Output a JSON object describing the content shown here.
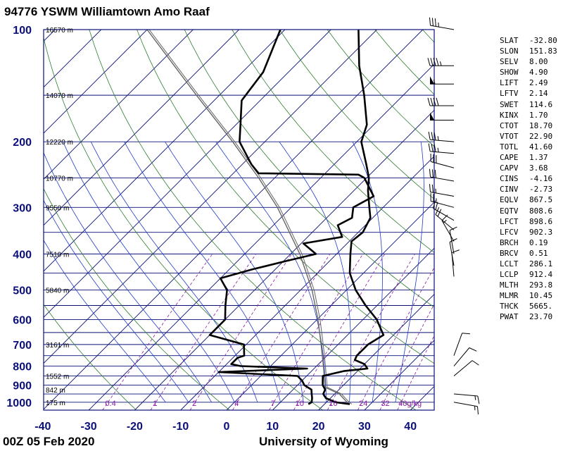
{
  "title": "94776 YSWM Williamtown Amo Raaf",
  "footer": {
    "time": "00Z 05 Feb 2020",
    "source": "University of Wyoming"
  },
  "colors": {
    "frame": "#0a1078",
    "isotherm": "#0a1078",
    "isobar": "#0a1078",
    "dry_adiabat": "#2e7d2e",
    "moist_adiabat": "#1e3cc8",
    "mixing_ratio": "#8c1aa0",
    "profile": "#000000",
    "parcel": "#666666",
    "axis_label": "#0a1078"
  },
  "indices": [
    [
      "SLAT",
      "-32.80"
    ],
    [
      "SLON",
      "151.83"
    ],
    [
      "SELV",
      "8.00"
    ],
    [
      "SHOW",
      "4.90"
    ],
    [
      "LIFT",
      "2.49"
    ],
    [
      "LFTV",
      "2.14"
    ],
    [
      "SWET",
      "114.6"
    ],
    [
      "KINX",
      "1.70"
    ],
    [
      "CTOT",
      "18.70"
    ],
    [
      "VTOT",
      "22.90"
    ],
    [
      "TOTL",
      "41.60"
    ],
    [
      "CAPE",
      "1.37"
    ],
    [
      "CAPV",
      "3.68"
    ],
    [
      "CINS",
      "-4.16"
    ],
    [
      "CINV",
      "-2.73"
    ],
    [
      "EQLV",
      "867.5"
    ],
    [
      "EQTV",
      "808.6"
    ],
    [
      "LFCT",
      "898.6"
    ],
    [
      "LFCV",
      "902.3"
    ],
    [
      "BRCH",
      "0.19"
    ],
    [
      "BRCV",
      "0.51"
    ],
    [
      "LCLT",
      "286.1"
    ],
    [
      "LCLP",
      "912.4"
    ],
    [
      "MLTH",
      "293.8"
    ],
    [
      "MLMR",
      "10.45"
    ],
    [
      "THCK",
      "5665."
    ],
    [
      "PWAT",
      "23.70"
    ]
  ],
  "chart_data": {
    "type": "skew-t",
    "y_scale": "log pressure",
    "pressure_ticks": [
      100,
      200,
      300,
      400,
      500,
      600,
      700,
      800,
      900,
      1000
    ],
    "temperature_ticks": [
      -40,
      -30,
      -20,
      -10,
      0,
      10,
      20,
      30,
      40
    ],
    "xlim": [
      -40,
      45
    ],
    "ylim": [
      1050,
      100
    ],
    "height_labels": [
      {
        "p": 100,
        "text": "16570 m"
      },
      {
        "p": 150,
        "text": "14070 m"
      },
      {
        "p": 200,
        "text": "12220 m"
      },
      {
        "p": 250,
        "text": "10770 m"
      },
      {
        "p": 300,
        "text": "9550 m"
      },
      {
        "p": 400,
        "text": "7510 m"
      },
      {
        "p": 500,
        "text": "5840 m"
      },
      {
        "p": 700,
        "text": "3161 m"
      },
      {
        "p": 850,
        "text": "1552 m"
      },
      {
        "p": 925,
        "text": "842 m"
      },
      {
        "p": 1000,
        "text": "175 m"
      }
    ],
    "mixing_ratio_lines": [
      0.4,
      1,
      2,
      4,
      7,
      10,
      16,
      24,
      32,
      40
    ],
    "mixing_ratio_labels": [
      "0.4",
      "1",
      "2",
      "4",
      "7",
      "10",
      "16",
      "24",
      "32",
      "40g/kg"
    ],
    "dry_adiabats_K": [
      250,
      270,
      290,
      310,
      330,
      350,
      370,
      390,
      410,
      430,
      450,
      470,
      490,
      510
    ],
    "moist_adiabats_C": [
      -15,
      -10,
      -5,
      0,
      5,
      10,
      15,
      20,
      25,
      30,
      35
    ],
    "temperature_profile": [
      [
        1012,
        25.5
      ],
      [
        1000,
        22.0
      ],
      [
        975,
        19.0
      ],
      [
        950,
        17.5
      ],
      [
        925,
        17.0
      ],
      [
        900,
        15.5
      ],
      [
        875,
        14.5
      ],
      [
        850,
        13.5
      ],
      [
        825,
        17.0
      ],
      [
        812,
        21.6
      ],
      [
        790,
        20.0
      ],
      [
        770,
        17.0
      ],
      [
        750,
        16.5
      ],
      [
        700,
        16.5
      ],
      [
        660,
        17.8
      ],
      [
        600,
        13.0
      ],
      [
        550,
        7.5
      ],
      [
        500,
        2.0
      ],
      [
        450,
        -3.0
      ],
      [
        400,
        -7.0
      ],
      [
        370,
        -9.5
      ],
      [
        350,
        -9.0
      ],
      [
        320,
        -10.5
      ],
      [
        300,
        -13.0
      ],
      [
        270,
        -17.0
      ],
      [
        250,
        -19.5
      ],
      [
        230,
        -23.0
      ],
      [
        200,
        -29.0
      ],
      [
        180,
        -31.5
      ],
      [
        150,
        -38.5
      ],
      [
        125,
        -46.0
      ],
      [
        100,
        -54.0
      ]
    ],
    "dewpoint_profile": [
      [
        1012,
        16.5
      ],
      [
        1000,
        16.8
      ],
      [
        975,
        16.0
      ],
      [
        950,
        15.0
      ],
      [
        925,
        14.0
      ],
      [
        900,
        11.5
      ],
      [
        875,
        10.0
      ],
      [
        850,
        8.0
      ],
      [
        830,
        -10.0
      ],
      [
        812,
        8.5
      ],
      [
        800,
        -6.5
      ],
      [
        790,
        -9.0
      ],
      [
        760,
        -9.0
      ],
      [
        750,
        -8.0
      ],
      [
        700,
        -10.5
      ],
      [
        660,
        -20.0
      ],
      [
        600,
        -20.0
      ],
      [
        550,
        -23.0
      ],
      [
        500,
        -26.0
      ],
      [
        465,
        -30.0
      ],
      [
        440,
        -25.0
      ],
      [
        418,
        -19.5
      ],
      [
        400,
        -14.5
      ],
      [
        375,
        -19.5
      ],
      [
        360,
        -12.5
      ],
      [
        335,
        -16.0
      ],
      [
        320,
        -14.5
      ],
      [
        300,
        -16.5
      ],
      [
        280,
        -14.5
      ],
      [
        250,
        -20.5
      ],
      [
        245,
        -22.5
      ],
      [
        243,
        -44.5
      ],
      [
        230,
        -48.0
      ],
      [
        200,
        -55.5
      ],
      [
        180,
        -59.0
      ],
      [
        155,
        -64.0
      ],
      [
        130,
        -65.5
      ],
      [
        100,
        -71.0
      ]
    ],
    "parcel_path": [
      [
        1012,
        25.5
      ],
      [
        1000,
        24.5
      ],
      [
        950,
        21.0
      ],
      [
        912,
        16.5
      ],
      [
        850,
        13.8
      ],
      [
        800,
        11.5
      ],
      [
        700,
        6.3
      ],
      [
        600,
        0.2
      ],
      [
        500,
        -7.5
      ],
      [
        400,
        -18.0
      ],
      [
        300,
        -33.0
      ],
      [
        250,
        -43.5
      ],
      [
        200,
        -57.0
      ],
      [
        150,
        -75.0
      ],
      [
        100,
        -100.0
      ]
    ],
    "wind_barbs": [
      {
        "p": 100,
        "dir": 280,
        "spd": 35
      },
      {
        "p": 125,
        "dir": 270,
        "spd": 45
      },
      {
        "p": 140,
        "dir": 270,
        "spd": 55
      },
      {
        "p": 160,
        "dir": 270,
        "spd": 40
      },
      {
        "p": 175,
        "dir": 270,
        "spd": 50
      },
      {
        "p": 200,
        "dir": 275,
        "spd": 35
      },
      {
        "p": 215,
        "dir": 275,
        "spd": 35
      },
      {
        "p": 235,
        "dir": 285,
        "spd": 30
      },
      {
        "p": 255,
        "dir": 280,
        "spd": 30
      },
      {
        "p": 280,
        "dir": 280,
        "spd": 25
      },
      {
        "p": 300,
        "dir": 285,
        "spd": 25
      },
      {
        "p": 325,
        "dir": 300,
        "spd": 20
      },
      {
        "p": 345,
        "dir": 310,
        "spd": 20
      },
      {
        "p": 370,
        "dir": 330,
        "spd": 15
      },
      {
        "p": 400,
        "dir": 350,
        "spd": 10
      },
      {
        "p": 430,
        "dir": 350,
        "spd": 10
      },
      {
        "p": 460,
        "dir": 355,
        "spd": 10
      },
      {
        "p": 750,
        "dir": 20,
        "spd": 10
      },
      {
        "p": 800,
        "dir": 40,
        "spd": 10
      },
      {
        "p": 850,
        "dir": 50,
        "spd": 10
      },
      {
        "p": 950,
        "dir": 95,
        "spd": 15
      },
      {
        "p": 1000,
        "dir": 100,
        "spd": 15
      }
    ]
  }
}
